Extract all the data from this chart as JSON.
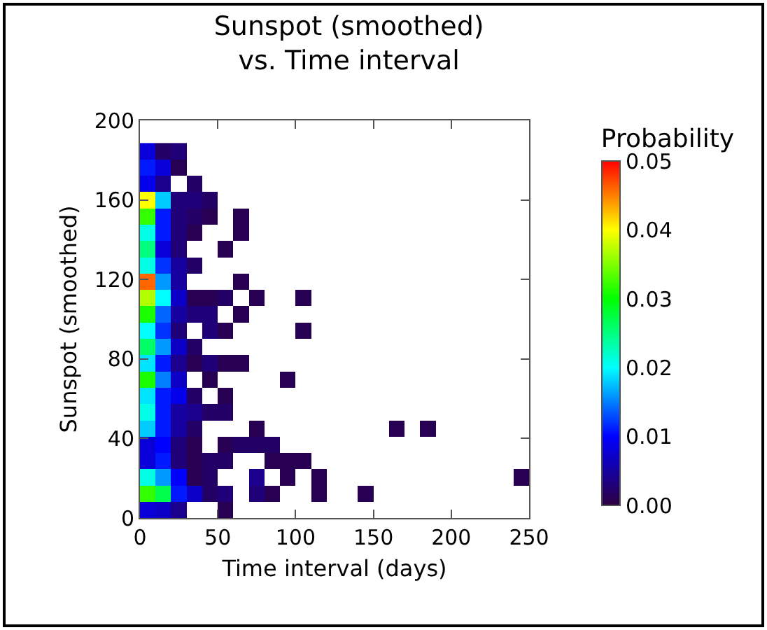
{
  "chart_data": {
    "type": "heatmap",
    "title": "Sunspot (smoothed)\nvs. Time interval",
    "xlabel": "Time interval (days)",
    "ylabel": "Sunspot (smoothed)",
    "clabel": "Probability",
    "x": [
      5,
      15,
      25,
      35,
      45,
      55,
      65,
      75,
      85,
      95,
      105,
      115,
      125,
      135,
      145,
      155,
      165,
      175,
      185,
      195,
      205,
      215,
      225,
      235,
      245
    ],
    "y": [
      184.5,
      176.3,
      168.1,
      159.9,
      151.7,
      143.5,
      135.3,
      127.1,
      118.9,
      110.7,
      102.5,
      94.3,
      86.1,
      77.9,
      69.7,
      61.5,
      53.3,
      45.1,
      36.9,
      28.7,
      20.5,
      12.3,
      4.1
    ],
    "cells": [
      [
        0.008,
        0.002,
        0.003,
        null,
        null,
        null,
        null,
        null,
        null,
        null,
        null,
        null,
        null,
        null,
        null,
        null,
        null,
        null,
        null,
        null,
        null,
        null,
        null,
        null,
        null
      ],
      [
        0.011,
        0.008,
        0.001,
        null,
        null,
        null,
        null,
        null,
        null,
        null,
        null,
        null,
        null,
        null,
        null,
        null,
        null,
        null,
        null,
        null,
        null,
        null,
        null,
        null,
        null
      ],
      [
        0.009,
        0.004,
        null,
        0.002,
        null,
        null,
        null,
        null,
        null,
        null,
        null,
        null,
        null,
        null,
        null,
        null,
        null,
        null,
        null,
        null,
        null,
        null,
        null,
        null,
        null
      ],
      [
        0.04,
        0.018,
        0.003,
        0.003,
        0.002,
        null,
        null,
        null,
        null,
        null,
        null,
        null,
        null,
        null,
        null,
        null,
        null,
        null,
        null,
        null,
        null,
        null,
        null,
        null,
        null
      ],
      [
        0.032,
        0.011,
        0.003,
        0.002,
        0.001,
        null,
        0.001,
        null,
        null,
        null,
        null,
        null,
        null,
        null,
        null,
        null,
        null,
        null,
        null,
        null,
        null,
        null,
        null,
        null,
        null
      ],
      [
        0.021,
        0.011,
        0.003,
        0.001,
        null,
        null,
        0.001,
        null,
        null,
        null,
        null,
        null,
        null,
        null,
        null,
        null,
        null,
        null,
        null,
        null,
        null,
        null,
        null,
        null,
        null
      ],
      [
        0.025,
        0.008,
        0.003,
        null,
        null,
        0.001,
        null,
        null,
        null,
        null,
        null,
        null,
        null,
        null,
        null,
        null,
        null,
        null,
        null,
        null,
        null,
        null,
        null,
        null,
        null
      ],
      [
        0.021,
        0.012,
        0.005,
        0.002,
        null,
        null,
        null,
        null,
        null,
        null,
        null,
        null,
        null,
        null,
        null,
        null,
        null,
        null,
        null,
        null,
        null,
        null,
        null,
        null,
        null
      ],
      [
        0.046,
        0.016,
        0.005,
        null,
        null,
        null,
        0.001,
        null,
        null,
        null,
        null,
        null,
        null,
        null,
        null,
        null,
        null,
        null,
        null,
        null,
        null,
        null,
        null,
        null,
        null
      ],
      [
        0.037,
        0.02,
        0.007,
        0.001,
        0.001,
        0.002,
        null,
        0.001,
        null,
        null,
        0.001,
        null,
        null,
        null,
        null,
        null,
        null,
        null,
        null,
        null,
        null,
        null,
        null,
        null,
        null
      ],
      [
        0.031,
        0.014,
        0.005,
        0.003,
        0.003,
        null,
        0.001,
        null,
        null,
        null,
        null,
        null,
        null,
        null,
        null,
        null,
        null,
        null,
        null,
        null,
        null,
        null,
        null,
        null,
        null
      ],
      [
        0.02,
        0.012,
        0.003,
        null,
        0.003,
        0.001,
        null,
        null,
        null,
        null,
        0.001,
        null,
        null,
        null,
        null,
        null,
        null,
        null,
        null,
        null,
        null,
        null,
        null,
        null,
        null
      ],
      [
        0.026,
        0.016,
        0.007,
        0.002,
        null,
        null,
        null,
        null,
        null,
        null,
        null,
        null,
        null,
        null,
        null,
        null,
        null,
        null,
        null,
        null,
        null,
        null,
        null,
        null,
        null
      ],
      [
        0.019,
        0.011,
        0.004,
        0.001,
        0.003,
        0.001,
        0.001,
        null,
        null,
        null,
        null,
        null,
        null,
        null,
        null,
        null,
        null,
        null,
        null,
        null,
        null,
        null,
        null,
        null,
        null
      ],
      [
        0.031,
        0.015,
        0.007,
        null,
        0.001,
        null,
        null,
        null,
        null,
        0.001,
        null,
        null,
        null,
        null,
        null,
        null,
        null,
        null,
        null,
        null,
        null,
        null,
        null,
        null,
        null
      ],
      [
        0.019,
        0.011,
        0.009,
        0.002,
        null,
        0.001,
        null,
        null,
        null,
        null,
        null,
        null,
        null,
        null,
        null,
        null,
        null,
        null,
        null,
        null,
        null,
        null,
        null,
        null,
        null
      ],
      [
        0.021,
        0.011,
        0.005,
        0.004,
        0.002,
        0.002,
        null,
        null,
        null,
        null,
        null,
        null,
        null,
        null,
        null,
        null,
        null,
        null,
        null,
        null,
        null,
        null,
        null,
        null,
        null
      ],
      [
        0.018,
        0.011,
        0.005,
        0.002,
        null,
        null,
        null,
        0.001,
        null,
        null,
        null,
        null,
        null,
        null,
        null,
        null,
        0.001,
        null,
        0.001,
        null,
        null,
        null,
        null,
        null,
        null
      ],
      [
        0.008,
        0.01,
        0.003,
        0.001,
        null,
        0.001,
        0.002,
        0.002,
        0.002,
        null,
        null,
        null,
        null,
        null,
        null,
        null,
        null,
        null,
        null,
        null,
        null,
        null,
        null,
        null,
        null
      ],
      [
        0.008,
        0.011,
        0.003,
        0.001,
        0.002,
        0.002,
        null,
        null,
        0.001,
        0.001,
        0.001,
        null,
        null,
        null,
        null,
        null,
        null,
        null,
        null,
        null,
        null,
        null,
        null,
        null,
        null
      ],
      [
        0.021,
        0.016,
        0.01,
        0.001,
        0.002,
        null,
        null,
        0.004,
        null,
        0.001,
        null,
        0.001,
        null,
        null,
        null,
        null,
        null,
        null,
        null,
        null,
        null,
        null,
        null,
        null,
        0.001
      ],
      [
        0.032,
        0.027,
        0.011,
        0.007,
        0.002,
        0.003,
        null,
        0.003,
        0.001,
        null,
        null,
        0.001,
        null,
        null,
        0.001,
        null,
        null,
        null,
        null,
        null,
        null,
        null,
        null,
        null,
        null
      ],
      [
        0.008,
        0.007,
        0.004,
        null,
        null,
        0.001,
        null,
        null,
        null,
        null,
        null,
        null,
        null,
        null,
        null,
        null,
        null,
        null,
        null,
        null,
        null,
        null,
        null,
        null,
        null
      ]
    ],
    "xlim": [
      0,
      250
    ],
    "xticks": [
      0,
      50,
      100,
      150,
      200,
      250
    ],
    "ylim": [
      0,
      200
    ],
    "yticks": [
      0,
      40,
      80,
      120,
      160,
      200
    ],
    "clim": [
      0,
      0.05
    ],
    "cticks": [
      {
        "value": 0,
        "label": "0.00"
      },
      {
        "value": 0.01,
        "label": "0.01"
      },
      {
        "value": 0.02,
        "label": "0.02"
      },
      {
        "value": 0.03,
        "label": "0.03"
      },
      {
        "value": 0.04,
        "label": "0.04"
      },
      {
        "value": 0.05,
        "label": "0.05"
      }
    ],
    "grid": false
  }
}
